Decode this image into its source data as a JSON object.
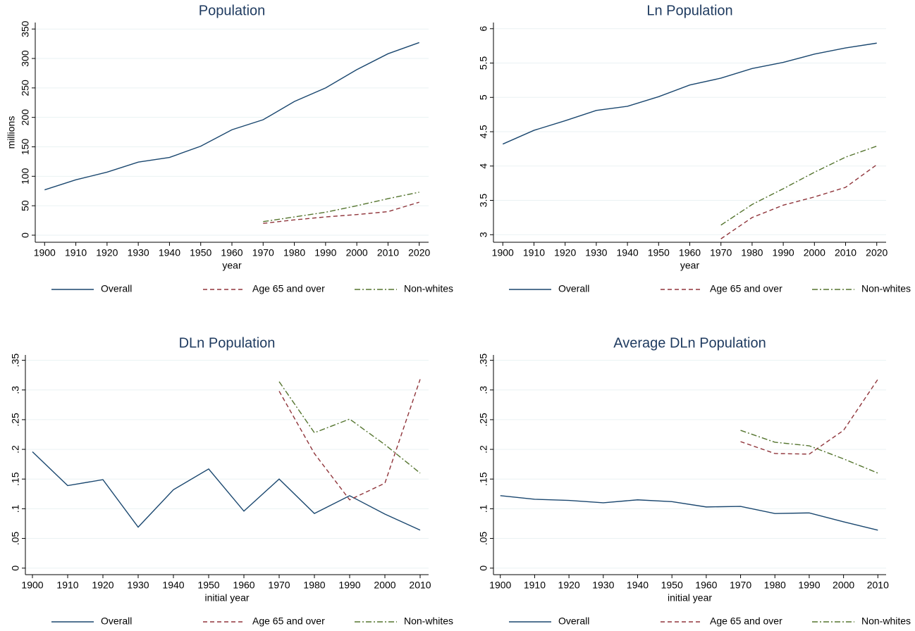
{
  "chart_data": [
    {
      "type": "line",
      "title": "Population",
      "ylabel": "millions",
      "xlabel": "year",
      "x": [
        1900,
        1910,
        1920,
        1930,
        1940,
        1950,
        1960,
        1970,
        1980,
        1990,
        2000,
        2010,
        2020
      ],
      "series": [
        {
          "name": "Overall",
          "color": "#1a476f",
          "dash": "solid",
          "values": [
            77,
            94,
            107,
            124,
            132,
            151,
            179,
            196,
            227,
            250,
            281,
            308,
            327
          ]
        },
        {
          "name": "Age 65 and over",
          "color": "#90353b",
          "dash": "dash",
          "values": [
            null,
            null,
            null,
            null,
            null,
            null,
            null,
            20,
            26,
            31,
            35,
            40,
            56
          ]
        },
        {
          "name": "Non-whites",
          "color": "#55752f",
          "dash": "dashdot",
          "values": [
            null,
            null,
            null,
            null,
            null,
            null,
            null,
            23,
            31,
            39,
            50,
            62,
            73
          ]
        }
      ],
      "xlim": [
        1897,
        2023
      ],
      "xticks": [
        1900,
        1910,
        1920,
        1930,
        1940,
        1950,
        1960,
        1970,
        1980,
        1990,
        2000,
        2010,
        2020
      ],
      "ylim": [
        -12,
        361
      ],
      "yticks": [
        0,
        50,
        100,
        150,
        200,
        250,
        300,
        350
      ],
      "grid": true,
      "legend": "bottom"
    },
    {
      "type": "line",
      "title": "Ln Population",
      "xlabel": "year",
      "x": [
        1900,
        1910,
        1920,
        1930,
        1940,
        1950,
        1960,
        1970,
        1980,
        1990,
        2000,
        2010,
        2020
      ],
      "series": [
        {
          "name": "Overall",
          "color": "#1a476f",
          "dash": "solid",
          "values": [
            4.32,
            4.52,
            4.66,
            4.81,
            4.87,
            5.01,
            5.18,
            5.28,
            5.42,
            5.51,
            5.63,
            5.72,
            5.79
          ]
        },
        {
          "name": "Age 65 and over",
          "color": "#90353b",
          "dash": "dash",
          "values": [
            null,
            null,
            null,
            null,
            null,
            null,
            null,
            2.94,
            3.25,
            3.43,
            3.55,
            3.69,
            4.02
          ]
        },
        {
          "name": "Non-whites",
          "color": "#55752f",
          "dash": "dashdot",
          "values": [
            null,
            null,
            null,
            null,
            null,
            null,
            null,
            3.14,
            3.44,
            3.67,
            3.91,
            4.13,
            4.29
          ]
        }
      ],
      "xlim": [
        1897,
        2023
      ],
      "xticks": [
        1900,
        1910,
        1920,
        1930,
        1940,
        1950,
        1960,
        1970,
        1980,
        1990,
        2000,
        2010,
        2020
      ],
      "ylim": [
        2.89,
        6.09
      ],
      "yticks": [
        3,
        3.5,
        4,
        4.5,
        5,
        5.5,
        6
      ],
      "grid": true,
      "legend": "bottom"
    },
    {
      "type": "line",
      "title": "DLn Population",
      "xlabel": "initial year",
      "x": [
        1900,
        1910,
        1920,
        1930,
        1940,
        1950,
        1960,
        1970,
        1980,
        1990,
        2000,
        2010
      ],
      "series": [
        {
          "name": "Overall",
          "color": "#1a476f",
          "dash": "solid",
          "values": [
            0.196,
            0.139,
            0.149,
            0.069,
            0.132,
            0.167,
            0.096,
            0.15,
            0.092,
            0.122,
            0.091,
            0.064
          ]
        },
        {
          "name": "Age 65 and over",
          "color": "#90353b",
          "dash": "dash",
          "values": [
            null,
            null,
            null,
            null,
            null,
            null,
            null,
            0.298,
            0.193,
            0.115,
            0.143,
            0.318
          ]
        },
        {
          "name": "Non-whites",
          "color": "#55752f",
          "dash": "dashdot",
          "values": [
            null,
            null,
            null,
            null,
            null,
            null,
            null,
            0.314,
            0.228,
            0.251,
            0.208,
            0.16
          ]
        }
      ],
      "xlim": [
        1898,
        2012.4
      ],
      "xticks": [
        1900,
        1910,
        1920,
        1930,
        1940,
        1950,
        1960,
        1970,
        1980,
        1990,
        2000,
        2010
      ],
      "ylim": [
        -0.011,
        0.359
      ],
      "yticks": [
        0,
        {
          "value": 0.05,
          "label": ".05"
        },
        {
          "value": 0.1,
          "label": ".1"
        },
        {
          "value": 0.15,
          "label": ".15"
        },
        {
          "value": 0.2,
          "label": ".2"
        },
        {
          "value": 0.25,
          "label": ".25"
        },
        {
          "value": 0.3,
          "label": ".3"
        },
        {
          "value": 0.35,
          "label": ".35"
        }
      ],
      "grid": true,
      "legend": "bottom"
    },
    {
      "type": "line",
      "title": "Average DLn Population",
      "xlabel": "initial year",
      "x": [
        1900,
        1910,
        1920,
        1930,
        1940,
        1950,
        1960,
        1970,
        1980,
        1990,
        2000,
        2010
      ],
      "series": [
        {
          "name": "Overall",
          "color": "#1a476f",
          "dash": "solid",
          "values": [
            0.122,
            0.116,
            0.114,
            0.11,
            0.115,
            0.112,
            0.103,
            0.104,
            0.092,
            0.093,
            0.078,
            0.064
          ]
        },
        {
          "name": "Age 65 and over",
          "color": "#90353b",
          "dash": "dash",
          "values": [
            null,
            null,
            null,
            null,
            null,
            null,
            null,
            0.213,
            0.193,
            0.192,
            0.232,
            0.318
          ]
        },
        {
          "name": "Non-whites",
          "color": "#55752f",
          "dash": "dashdot",
          "values": [
            null,
            null,
            null,
            null,
            null,
            null,
            null,
            0.232,
            0.212,
            0.206,
            0.184,
            0.16
          ]
        }
      ],
      "xlim": [
        1898,
        2012.4
      ],
      "xticks": [
        1900,
        1910,
        1920,
        1930,
        1940,
        1950,
        1960,
        1970,
        1980,
        1990,
        2000,
        2010
      ],
      "ylim": [
        -0.011,
        0.359
      ],
      "yticks": [
        0,
        {
          "value": 0.05,
          "label": ".05"
        },
        {
          "value": 0.1,
          "label": ".1"
        },
        {
          "value": 0.15,
          "label": ".15"
        },
        {
          "value": 0.2,
          "label": ".2"
        },
        {
          "value": 0.25,
          "label": ".25"
        },
        {
          "value": 0.3,
          "label": ".3"
        },
        {
          "value": 0.35,
          "label": ".35"
        }
      ],
      "grid": true,
      "legend": "bottom"
    }
  ]
}
